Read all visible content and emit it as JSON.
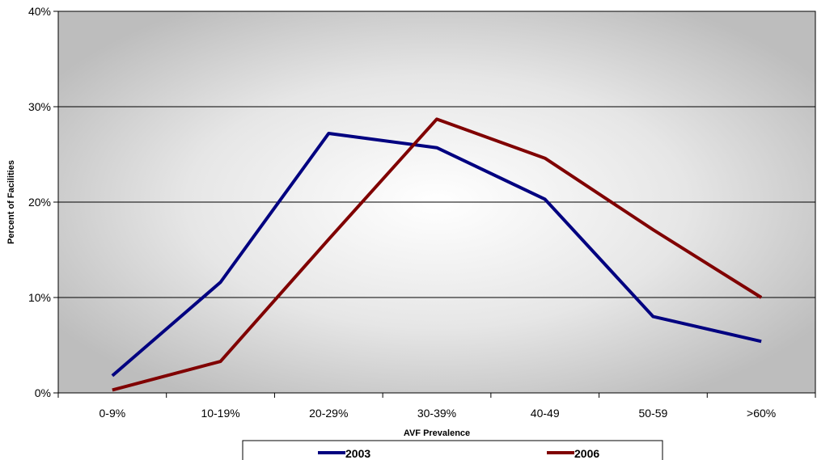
{
  "chart_data": {
    "type": "line",
    "categories": [
      "0-9%",
      "10-19%",
      "20-29%",
      "30-39%",
      "40-49",
      "50-59",
      ">60%"
    ],
    "series": [
      {
        "name": "2003",
        "color": "#000080",
        "values": [
          1.8,
          11.6,
          27.2,
          25.7,
          20.3,
          8.0,
          5.4
        ]
      },
      {
        "name": "2006",
        "color": "#800000",
        "values": [
          0.3,
          3.3,
          16.1,
          28.7,
          24.6,
          17.1,
          10.0
        ]
      }
    ],
    "xlabel": "AVF Prevalence",
    "ylabel": "Percent of Facilities",
    "ylim": [
      0,
      40
    ],
    "yticks": [
      "0%",
      "10%",
      "20%",
      "30%",
      "40%"
    ],
    "grid": true,
    "legend_position": "bottom"
  }
}
